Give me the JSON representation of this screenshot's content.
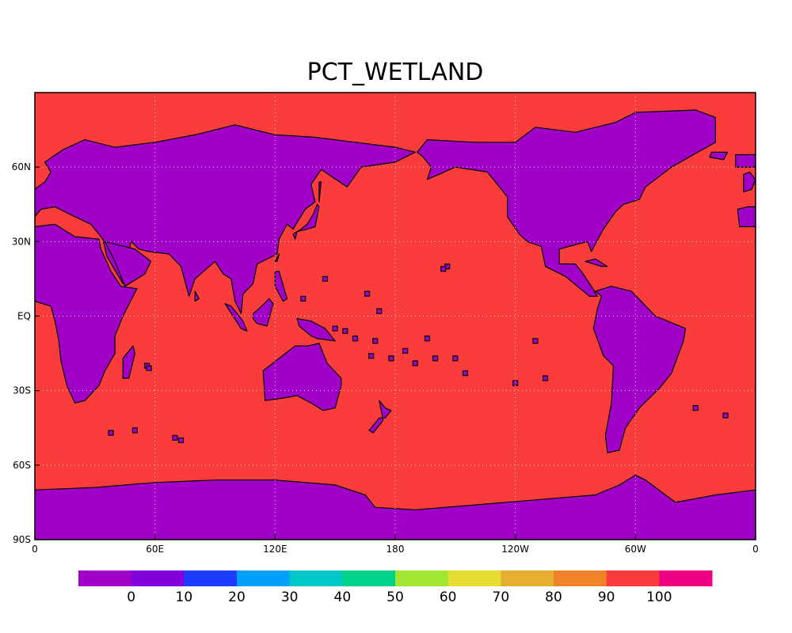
{
  "title": "PCT_WETLAND",
  "map": {
    "projection": "equirectangular",
    "lon_range": [
      0,
      360
    ],
    "lat_range": [
      -90,
      90
    ],
    "ocean_color": "#fa3c3c",
    "land_color": "#a000c8",
    "coast_color": "#000000",
    "gridlines": "dotted",
    "x_ticks": [
      "0",
      "60E",
      "120E",
      "180",
      "120W",
      "60W",
      "0"
    ],
    "y_ticks": [
      "90S",
      "60S",
      "30S",
      "EQ",
      "30N",
      "60N"
    ]
  },
  "colorbar": {
    "colors": [
      "#a000c8",
      "#8200dc",
      "#1e3cff",
      "#00a0ff",
      "#00c8c8",
      "#00d28c",
      "#a0e632",
      "#e6dc32",
      "#e6af2d",
      "#f08228",
      "#fa3c3c",
      "#f00082"
    ],
    "labels": [
      "0",
      "10",
      "20",
      "30",
      "40",
      "50",
      "60",
      "70",
      "80",
      "90",
      "100"
    ]
  }
}
